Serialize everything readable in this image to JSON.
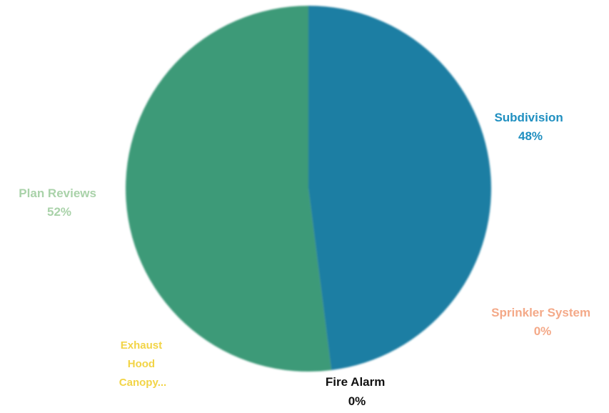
{
  "chart_data": {
    "type": "pie",
    "title": "",
    "slices": [
      {
        "label": "Subdivision",
        "percent_label": "48%",
        "value": 48,
        "color": "#1f7ea3"
      },
      {
        "label": "Sprinkler System",
        "percent_label": "0%",
        "value": 0,
        "color": "#f4a988"
      },
      {
        "label": "Fire Alarm",
        "percent_label": "0%",
        "value": 0,
        "color": "#222222"
      },
      {
        "label": "Exhaust Hood Canopy...",
        "percent_label": "",
        "value": 0,
        "color": "#f0d23c"
      },
      {
        "label": "Plan Reviews",
        "percent_label": "52%",
        "value": 52,
        "color": "#3c9a78"
      }
    ],
    "legend": "none"
  },
  "labels": {
    "subdivision": {
      "name": "Subdivision",
      "pct": "48%",
      "color": "#1f8fc0"
    },
    "sprinkler": {
      "name": "Sprinkler System",
      "pct": "0%",
      "color": "#f4a988"
    },
    "fire_alarm": {
      "name": "Fire Alarm",
      "pct": "0%",
      "color": "#111111"
    },
    "exhaust": {
      "line1": "Exhaust",
      "line2": "Hood",
      "line3": "Canopy...",
      "color": "#f2d446"
    },
    "plan_reviews": {
      "name": "Plan Reviews",
      "pct": "52%",
      "color": "#a9d2a9"
    }
  }
}
